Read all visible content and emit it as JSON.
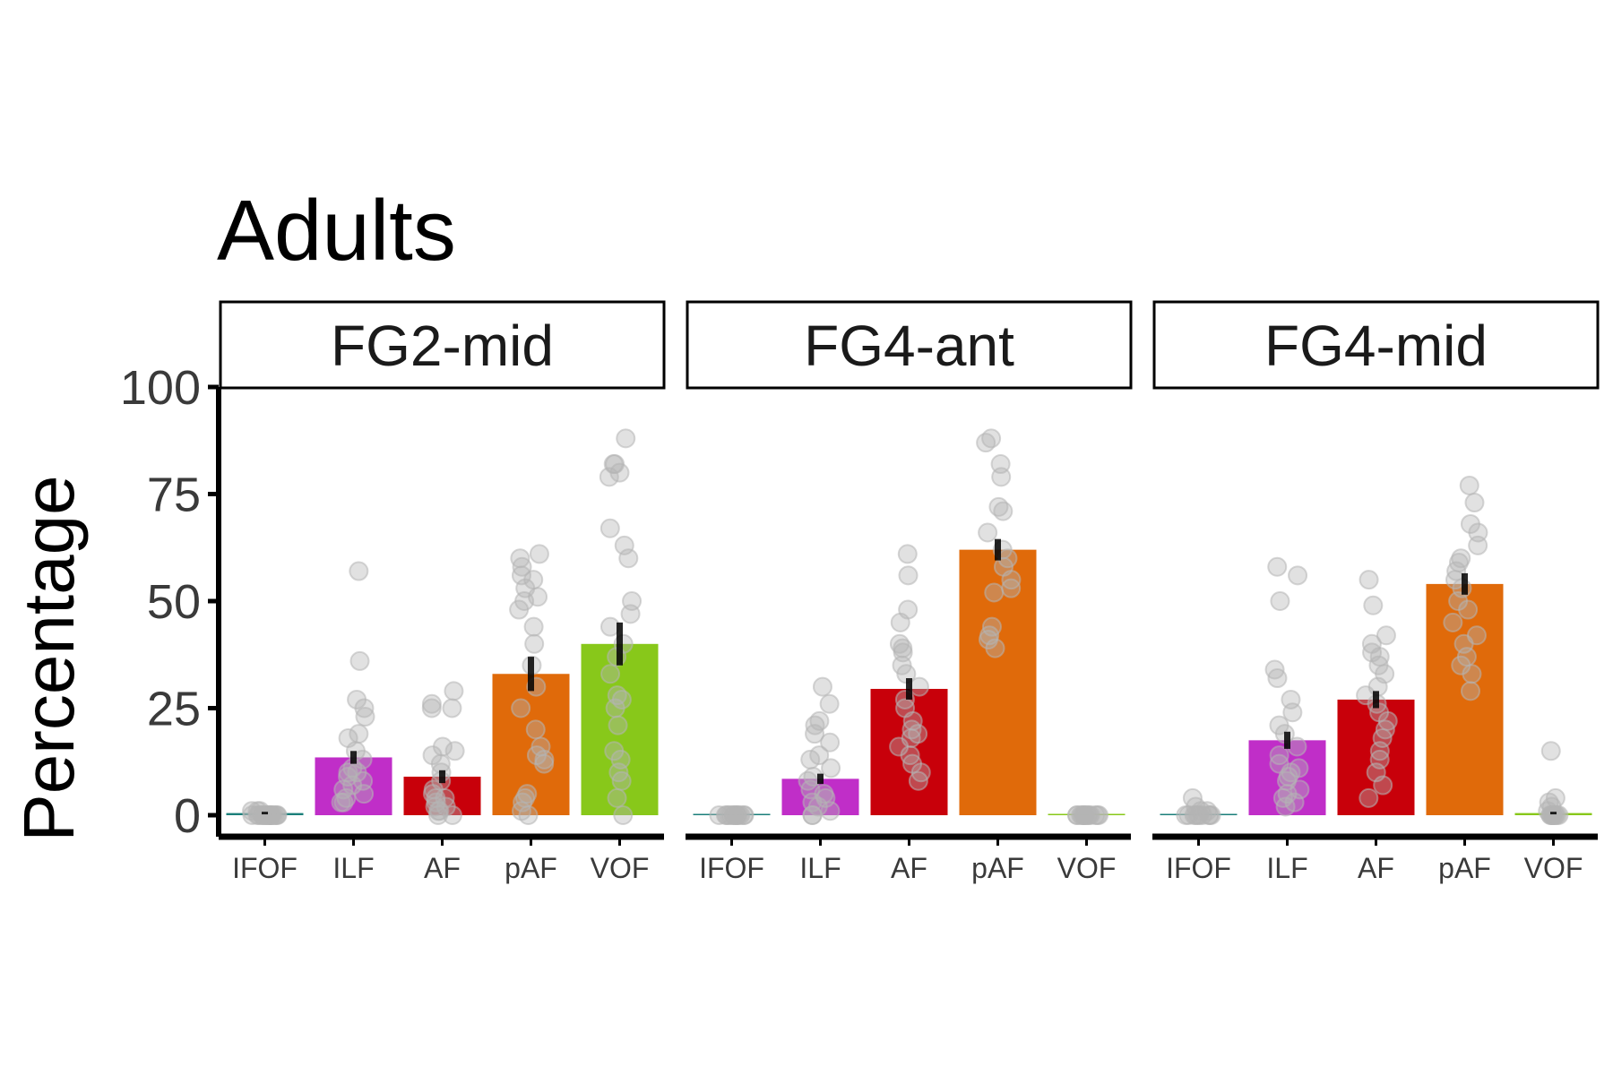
{
  "chart_data": {
    "type": "bar",
    "title": "Adults",
    "ylabel": "Percentage",
    "xlabel": "",
    "ylim": [
      0,
      100
    ],
    "yticks": [
      0,
      25,
      50,
      75,
      100
    ],
    "categories": [
      "IFOF",
      "ILF",
      "AF",
      "pAF",
      "VOF"
    ],
    "colors": {
      "IFOF": "#1b7f7a",
      "ILF": "#c02ec8",
      "AF": "#c8000a",
      "pAF": "#e06a0a",
      "VOF": "#88c81a"
    },
    "point_color": "#b4b4b4",
    "errorbar_color": "#000000",
    "grid": false,
    "legend": "none",
    "panels": [
      {
        "label": "FG2-mid",
        "values": [
          0.5,
          13.5,
          9,
          33,
          40
        ],
        "errors": [
          0.3,
          1.5,
          1.5,
          4,
          5
        ],
        "points": [
          [
            0,
            0,
            0,
            0,
            0,
            1,
            1,
            0,
            0,
            0,
            0,
            0,
            0,
            1,
            0,
            0,
            0,
            0,
            0,
            0,
            0,
            0
          ],
          [
            57,
            36,
            27,
            25,
            23,
            19,
            18,
            15,
            13,
            11,
            10,
            9,
            8,
            7,
            6,
            5,
            4,
            3,
            3,
            10
          ],
          [
            29,
            26,
            25,
            25,
            16,
            15,
            14,
            12,
            10,
            8,
            6,
            5,
            4,
            3,
            2,
            1,
            0,
            0,
            1,
            2,
            4
          ],
          [
            61,
            60,
            58,
            56,
            55,
            53,
            51,
            50,
            48,
            44,
            40,
            35,
            30,
            25,
            20,
            16,
            14,
            13,
            12,
            5,
            4,
            3,
            1,
            0
          ],
          [
            88,
            82,
            82,
            80,
            79,
            67,
            63,
            60,
            50,
            47,
            44,
            40,
            37,
            33,
            28,
            27,
            25,
            21,
            15,
            13,
            10,
            8,
            4,
            0
          ]
        ]
      },
      {
        "label": "FG4-ant",
        "values": [
          0,
          8.5,
          29.5,
          62,
          0
        ],
        "errors": [
          0,
          1.2,
          2.5,
          2.5,
          0
        ],
        "points": [
          [
            0,
            0,
            0,
            0,
            0,
            0,
            0,
            0,
            0,
            0,
            0,
            0,
            0,
            0
          ],
          [
            30,
            26,
            22,
            21,
            19,
            17,
            14,
            13,
            11,
            9,
            8,
            6,
            5,
            4,
            3,
            2,
            1,
            0,
            0
          ],
          [
            61,
            56,
            48,
            45,
            40,
            39,
            38,
            35,
            33,
            30,
            27,
            25,
            22,
            20,
            19,
            18,
            16,
            14,
            12,
            10,
            8
          ],
          [
            88,
            87,
            82,
            79,
            72,
            71,
            66,
            62,
            60,
            58,
            55,
            53,
            52,
            44,
            42,
            41,
            39
          ],
          [
            0,
            0,
            0,
            0,
            0,
            0,
            0,
            0,
            0,
            0,
            0,
            0,
            0,
            0
          ]
        ]
      },
      {
        "label": "FG4-mid",
        "values": [
          0,
          17.5,
          27,
          54,
          0.5
        ],
        "errors": [
          0,
          2,
          2,
          2.5,
          0.3
        ],
        "points": [
          [
            4,
            2,
            1,
            1,
            0,
            0,
            0,
            0,
            0,
            0,
            0,
            0,
            0,
            0
          ],
          [
            58,
            56,
            50,
            34,
            32,
            27,
            24,
            21,
            19,
            16,
            14,
            12,
            11,
            10,
            9,
            8,
            6,
            5,
            4,
            3,
            2
          ],
          [
            55,
            49,
            42,
            40,
            38,
            37,
            35,
            33,
            30,
            28,
            26,
            24,
            22,
            20,
            18,
            15,
            13,
            10,
            7,
            4
          ],
          [
            77,
            73,
            68,
            66,
            63,
            60,
            59,
            57,
            55,
            53,
            50,
            48,
            45,
            42,
            40,
            37,
            35,
            33,
            29
          ],
          [
            15,
            4,
            3,
            2,
            1,
            0,
            0,
            0,
            0,
            0,
            0,
            0,
            0,
            0
          ]
        ]
      }
    ]
  }
}
